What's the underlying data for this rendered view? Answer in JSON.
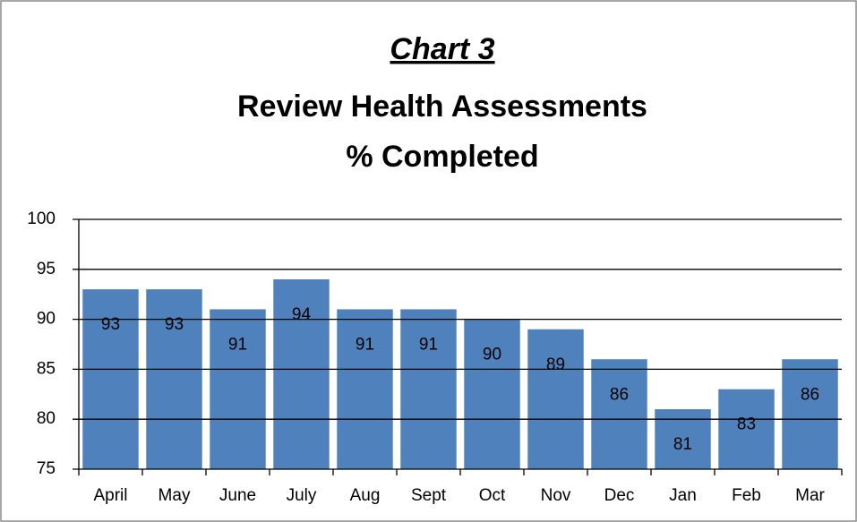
{
  "chart_data": {
    "type": "bar",
    "title": "Chart 3",
    "subtitle": [
      "Review Health Assessments",
      "% Completed"
    ],
    "categories": [
      "April",
      "May",
      "June",
      "July",
      "Aug",
      "Sept",
      "Oct",
      "Nov",
      "Dec",
      "Jan",
      "Feb",
      "Mar"
    ],
    "values": [
      93,
      93,
      91,
      94,
      91,
      91,
      90,
      89,
      86,
      81,
      83,
      86
    ],
    "color": "#4f81bd",
    "ylim": [
      75,
      100
    ],
    "yticks": [
      75,
      80,
      85,
      90,
      95,
      100
    ],
    "grid": true
  }
}
